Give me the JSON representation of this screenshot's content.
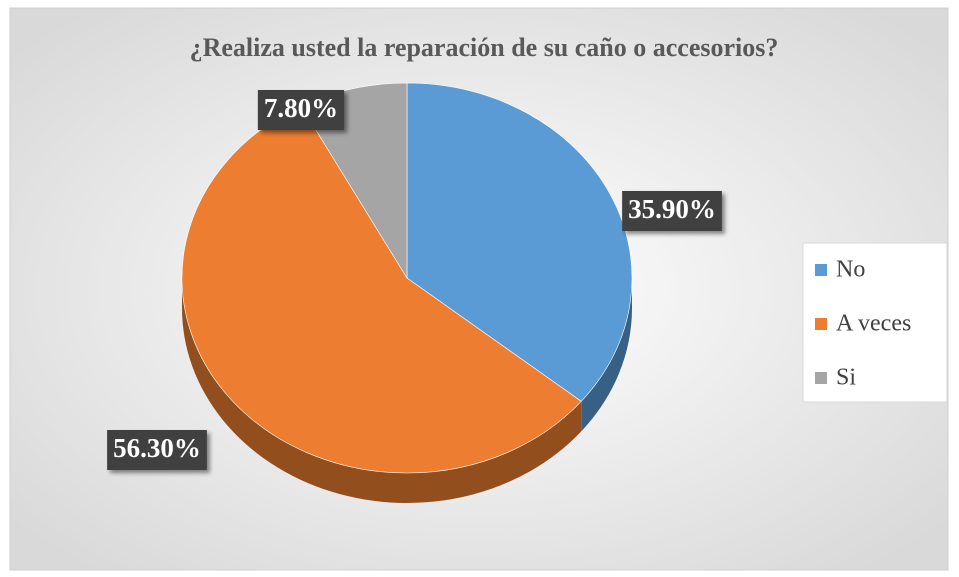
{
  "chart_data": {
    "type": "pie",
    "title": "¿Realiza usted la reparación de su caño o accesorios?",
    "categories": [
      "No",
      "A veces",
      "Si"
    ],
    "values": [
      35.9,
      56.3,
      7.8
    ],
    "value_labels": [
      "35.90%",
      "56.30%",
      "7.80%"
    ],
    "colors": [
      "#5b9bd5",
      "#ed7d31",
      "#a5a5a5"
    ],
    "legend": "right"
  }
}
